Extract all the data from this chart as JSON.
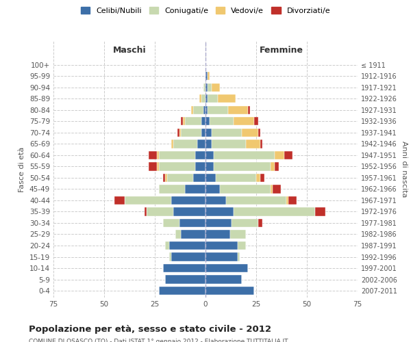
{
  "age_groups": [
    "0-4",
    "5-9",
    "10-14",
    "15-19",
    "20-24",
    "25-29",
    "30-34",
    "35-39",
    "40-44",
    "45-49",
    "50-54",
    "55-59",
    "60-64",
    "65-69",
    "70-74",
    "75-79",
    "80-84",
    "85-89",
    "90-94",
    "95-99",
    "100+"
  ],
  "birth_years": [
    "2007-2011",
    "2002-2006",
    "1997-2001",
    "1992-1996",
    "1987-1991",
    "1982-1986",
    "1977-1981",
    "1972-1976",
    "1967-1971",
    "1962-1966",
    "1957-1961",
    "1952-1956",
    "1947-1951",
    "1942-1946",
    "1937-1941",
    "1932-1936",
    "1927-1931",
    "1922-1926",
    "1917-1921",
    "1912-1916",
    "≤ 1911"
  ],
  "maschi": {
    "celibi": [
      23,
      20,
      21,
      17,
      18,
      12,
      13,
      16,
      17,
      10,
      6,
      5,
      5,
      4,
      2,
      2,
      1,
      0,
      0,
      0,
      0
    ],
    "coniugati": [
      0,
      0,
      0,
      1,
      2,
      3,
      8,
      13,
      23,
      13,
      13,
      18,
      18,
      12,
      10,
      8,
      5,
      2,
      1,
      0,
      0
    ],
    "vedovi": [
      0,
      0,
      0,
      0,
      0,
      0,
      0,
      0,
      0,
      0,
      1,
      1,
      1,
      1,
      1,
      1,
      1,
      1,
      0,
      0,
      0
    ],
    "divorziati": [
      0,
      0,
      0,
      0,
      0,
      0,
      0,
      1,
      5,
      0,
      1,
      4,
      4,
      0,
      1,
      1,
      0,
      0,
      0,
      0,
      0
    ]
  },
  "femmine": {
    "celibi": [
      24,
      18,
      21,
      16,
      16,
      12,
      13,
      14,
      10,
      7,
      5,
      4,
      4,
      3,
      3,
      2,
      1,
      1,
      1,
      1,
      0
    ],
    "coniugati": [
      0,
      0,
      0,
      1,
      4,
      8,
      13,
      40,
      30,
      25,
      20,
      28,
      30,
      17,
      15,
      12,
      10,
      5,
      2,
      0,
      0
    ],
    "vedovi": [
      0,
      0,
      0,
      0,
      0,
      0,
      0,
      0,
      1,
      1,
      2,
      2,
      5,
      7,
      8,
      10,
      10,
      9,
      4,
      1,
      0
    ],
    "divorziati": [
      0,
      0,
      0,
      0,
      0,
      0,
      2,
      5,
      4,
      4,
      2,
      2,
      4,
      1,
      1,
      2,
      1,
      0,
      0,
      0,
      0
    ]
  },
  "colors": {
    "celibi": "#3d6fa8",
    "coniugati": "#c8d9b0",
    "vedovi": "#f0c870",
    "divorziati": "#c0302a"
  },
  "legend_labels": [
    "Celibi/Nubili",
    "Coniugati/e",
    "Vedovi/e",
    "Divorziati/e"
  ],
  "title": "Popolazione per età, sesso e stato civile - 2012",
  "subtitle": "COMUNE DI OSASCO (TO) - Dati ISTAT 1° gennaio 2012 - Elaborazione TUTTITALIA.IT",
  "xlabel_left": "Maschi",
  "xlabel_right": "Femmine",
  "ylabel_left": "Fasce di età",
  "ylabel_right": "Anni di nascita",
  "xlim": 75,
  "background_color": "#ffffff",
  "grid_color": "#cccccc"
}
